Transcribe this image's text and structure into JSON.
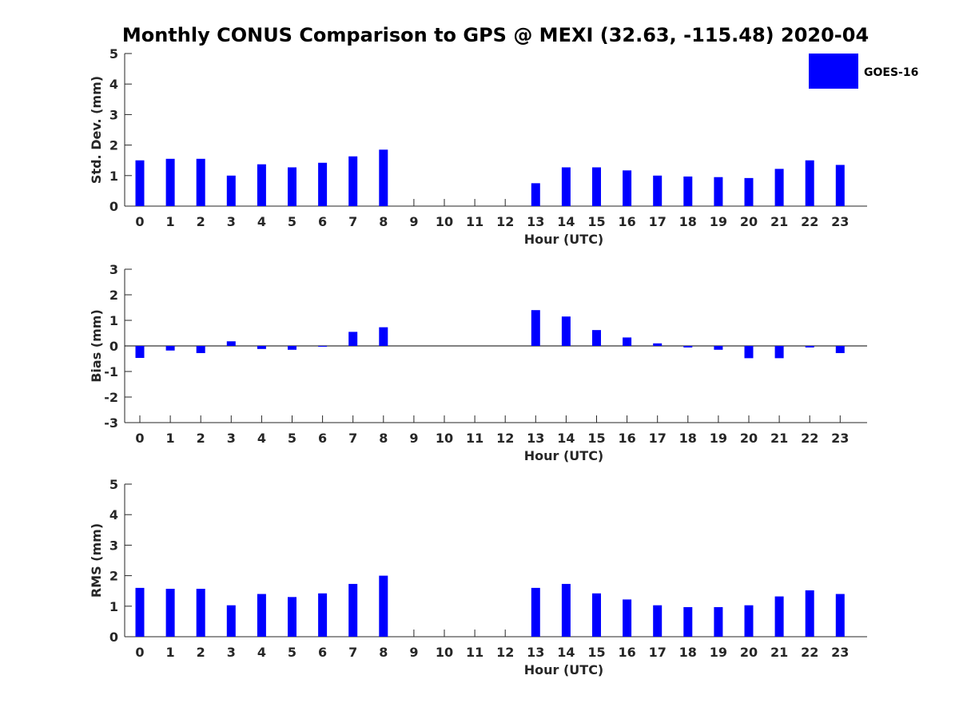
{
  "figure": {
    "title": "Monthly CONUS Comparison to GPS @ MEXI (32.63, -115.48) 2020-04",
    "series_color": "#0000ff"
  },
  "legend": {
    "label": "GOES-16",
    "position": "top-right"
  },
  "chart_data": [
    {
      "type": "bar",
      "categories": [
        "0",
        "1",
        "2",
        "3",
        "4",
        "5",
        "6",
        "7",
        "8",
        "9",
        "10",
        "11",
        "12",
        "13",
        "14",
        "15",
        "16",
        "17",
        "18",
        "19",
        "20",
        "21",
        "22",
        "23"
      ],
      "series": [
        {
          "name": "GOES-16",
          "values": [
            1.5,
            1.55,
            1.55,
            1.0,
            1.37,
            1.27,
            1.42,
            1.63,
            1.85,
            null,
            null,
            null,
            null,
            0.75,
            1.27,
            1.27,
            1.17,
            1.0,
            0.97,
            0.95,
            0.92,
            1.22,
            1.5,
            1.35
          ]
        }
      ],
      "xlabel": "Hour (UTC)",
      "ylabel": "Std. Dev. (mm)",
      "ylim": [
        0,
        5
      ],
      "yticks": [
        0,
        1,
        2,
        3,
        4,
        5
      ],
      "grid": false
    },
    {
      "type": "bar",
      "categories": [
        "0",
        "1",
        "2",
        "3",
        "4",
        "5",
        "6",
        "7",
        "8",
        "9",
        "10",
        "11",
        "12",
        "13",
        "14",
        "15",
        "16",
        "17",
        "18",
        "19",
        "20",
        "21",
        "22",
        "23"
      ],
      "series": [
        {
          "name": "GOES-16",
          "values": [
            -0.47,
            -0.18,
            -0.28,
            0.18,
            -0.12,
            -0.15,
            -0.03,
            0.55,
            0.73,
            null,
            null,
            null,
            null,
            1.4,
            1.15,
            0.62,
            0.33,
            0.1,
            -0.06,
            -0.15,
            -0.48,
            -0.48,
            -0.06,
            -0.28
          ]
        }
      ],
      "xlabel": "Hour (UTC)",
      "ylabel": "Bias (mm)",
      "ylim": [
        -3,
        3
      ],
      "yticks": [
        -3,
        -2,
        -1,
        0,
        1,
        2,
        3
      ],
      "grid": false
    },
    {
      "type": "bar",
      "categories": [
        "0",
        "1",
        "2",
        "3",
        "4",
        "5",
        "6",
        "7",
        "8",
        "9",
        "10",
        "11",
        "12",
        "13",
        "14",
        "15",
        "16",
        "17",
        "18",
        "19",
        "20",
        "21",
        "22",
        "23"
      ],
      "series": [
        {
          "name": "GOES-16",
          "values": [
            1.6,
            1.57,
            1.57,
            1.03,
            1.4,
            1.3,
            1.42,
            1.73,
            2.0,
            null,
            null,
            null,
            null,
            1.6,
            1.73,
            1.42,
            1.22,
            1.03,
            0.97,
            0.97,
            1.03,
            1.32,
            1.52,
            1.4
          ]
        }
      ],
      "xlabel": "Hour (UTC)",
      "ylabel": "RMS (mm)",
      "ylim": [
        0,
        5
      ],
      "yticks": [
        0,
        1,
        2,
        3,
        4,
        5
      ],
      "grid": false
    }
  ]
}
